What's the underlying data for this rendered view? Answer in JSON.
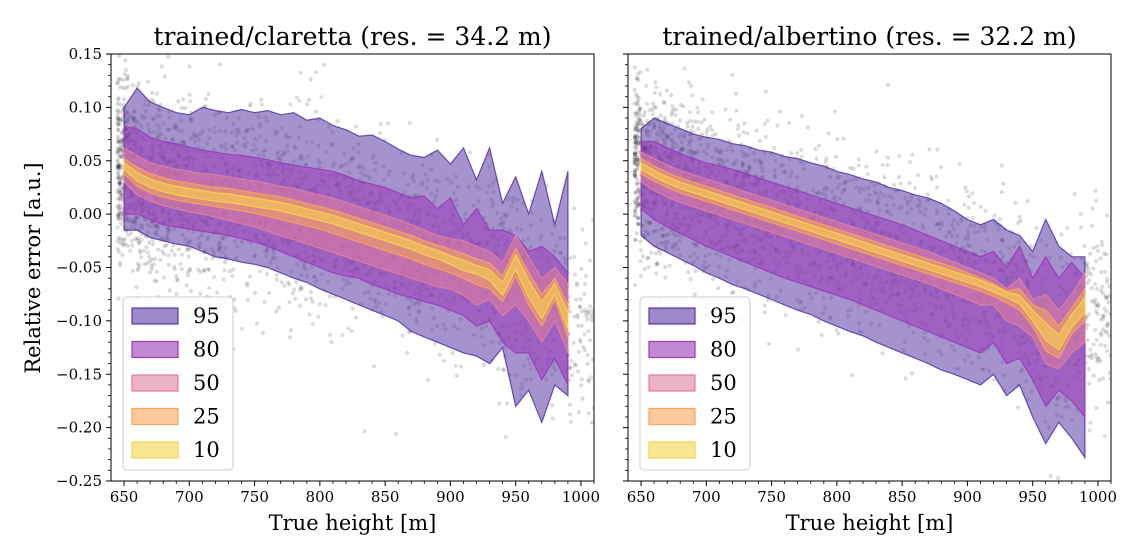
{
  "figure": {
    "ylabel": "Relative error [a.u.]",
    "xlabel": "True height [m]"
  },
  "chart_data": [
    {
      "type": "area",
      "title": "trained/claretta (res. = 34.2 m)",
      "xlabel": "True height [m]",
      "ylabel": "Relative error [a.u.]",
      "xlim": [
        640,
        1010
      ],
      "ylim": [
        -0.25,
        0.15
      ],
      "x_ticks": [
        650,
        700,
        750,
        800,
        850,
        900,
        950,
        1000
      ],
      "y_ticks": [
        -0.25,
        -0.2,
        -0.15,
        -0.1,
        -0.05,
        0.0,
        0.05,
        0.1,
        0.15
      ],
      "legend_position": "lower-left",
      "legend": [
        "95",
        "80",
        "50",
        "25",
        "10"
      ],
      "band_colors": [
        "#5b3aa6",
        "#9a3ab8",
        "#e07fa0",
        "#f7a55a",
        "#f7d44a"
      ],
      "scatter_color": "#000000",
      "scatter_points": 2400,
      "scatter_spread": 0.045,
      "x": [
        650,
        660,
        670,
        680,
        690,
        700,
        710,
        720,
        730,
        740,
        750,
        760,
        770,
        780,
        790,
        800,
        810,
        820,
        830,
        840,
        850,
        860,
        870,
        880,
        890,
        900,
        910,
        920,
        930,
        940,
        950,
        960,
        970,
        980,
        990
      ],
      "median": [
        0.045,
        0.035,
        0.029,
        0.025,
        0.022,
        0.02,
        0.018,
        0.016,
        0.015,
        0.013,
        0.011,
        0.009,
        0.007,
        0.004,
        0.001,
        -0.002,
        -0.005,
        -0.009,
        -0.013,
        -0.017,
        -0.021,
        -0.025,
        -0.029,
        -0.034,
        -0.038,
        -0.043,
        -0.048,
        -0.052,
        -0.057,
        -0.07,
        -0.045,
        -0.07,
        -0.09,
        -0.07,
        -0.1
      ],
      "bands": {
        "95": {
          "upper": [
            0.1,
            0.118,
            0.105,
            0.1,
            0.095,
            0.093,
            0.1,
            0.097,
            0.095,
            0.098,
            0.095,
            0.097,
            0.093,
            0.095,
            0.088,
            0.09,
            0.083,
            0.079,
            0.073,
            0.074,
            0.068,
            0.061,
            0.055,
            0.053,
            0.06,
            0.047,
            0.062,
            0.032,
            0.062,
            0.01,
            0.035,
            0.0,
            0.04,
            -0.01,
            0.04
          ],
          "lower": [
            -0.015,
            -0.015,
            -0.022,
            -0.025,
            -0.028,
            -0.03,
            -0.035,
            -0.04,
            -0.042,
            -0.045,
            -0.047,
            -0.05,
            -0.055,
            -0.06,
            -0.064,
            -0.07,
            -0.075,
            -0.08,
            -0.085,
            -0.09,
            -0.095,
            -0.1,
            -0.11,
            -0.115,
            -0.12,
            -0.125,
            -0.13,
            -0.133,
            -0.14,
            -0.125,
            -0.18,
            -0.165,
            -0.195,
            -0.16,
            -0.17
          ]
        },
        "80": {
          "upper": [
            0.082,
            0.08,
            0.072,
            0.068,
            0.066,
            0.063,
            0.06,
            0.058,
            0.056,
            0.055,
            0.053,
            0.051,
            0.048,
            0.046,
            0.044,
            0.042,
            0.04,
            0.036,
            0.031,
            0.028,
            0.025,
            0.02,
            0.015,
            0.017,
            0.005,
            0.015,
            -0.01,
            0.005,
            -0.015,
            -0.015,
            -0.02,
            -0.035,
            -0.03,
            -0.04,
            -0.055
          ],
          "lower": [
            0.0,
            0.0,
            -0.005,
            -0.01,
            -0.012,
            -0.014,
            -0.016,
            -0.018,
            -0.02,
            -0.023,
            -0.026,
            -0.03,
            -0.035,
            -0.04,
            -0.045,
            -0.05,
            -0.055,
            -0.058,
            -0.06,
            -0.066,
            -0.07,
            -0.075,
            -0.078,
            -0.082,
            -0.085,
            -0.09,
            -0.095,
            -0.105,
            -0.1,
            -0.12,
            -0.13,
            -0.13,
            -0.155,
            -0.135,
            -0.16
          ]
        },
        "50": {
          "upper": [
            0.062,
            0.055,
            0.048,
            0.045,
            0.042,
            0.04,
            0.038,
            0.037,
            0.035,
            0.033,
            0.031,
            0.029,
            0.026,
            0.024,
            0.021,
            0.018,
            0.015,
            0.011,
            0.007,
            0.003,
            -0.001,
            -0.005,
            -0.01,
            -0.015,
            -0.02,
            -0.023,
            -0.025,
            -0.03,
            -0.035,
            -0.045,
            -0.02,
            -0.04,
            -0.06,
            -0.05,
            -0.065
          ],
          "lower": [
            0.03,
            0.018,
            0.012,
            0.008,
            0.005,
            0.002,
            0.0,
            -0.003,
            -0.006,
            -0.009,
            -0.012,
            -0.016,
            -0.02,
            -0.024,
            -0.028,
            -0.032,
            -0.036,
            -0.04,
            -0.044,
            -0.048,
            -0.052,
            -0.056,
            -0.06,
            -0.064,
            -0.068,
            -0.07,
            -0.076,
            -0.085,
            -0.08,
            -0.095,
            -0.085,
            -0.1,
            -0.12,
            -0.1,
            -0.13
          ]
        },
        "25": {
          "upper": [
            0.052,
            0.044,
            0.038,
            0.034,
            0.031,
            0.029,
            0.027,
            0.025,
            0.024,
            0.022,
            0.02,
            0.018,
            0.016,
            0.013,
            0.01,
            0.007,
            0.004,
            0.0,
            -0.004,
            -0.008,
            -0.012,
            -0.016,
            -0.02,
            -0.025,
            -0.029,
            -0.033,
            -0.037,
            -0.042,
            -0.046,
            -0.058,
            -0.032,
            -0.055,
            -0.075,
            -0.06,
            -0.085
          ],
          "lower": [
            0.038,
            0.026,
            0.02,
            0.016,
            0.013,
            0.011,
            0.009,
            0.007,
            0.005,
            0.003,
            0.001,
            -0.002,
            -0.005,
            -0.008,
            -0.011,
            -0.014,
            -0.018,
            -0.022,
            -0.026,
            -0.03,
            -0.034,
            -0.038,
            -0.042,
            -0.047,
            -0.051,
            -0.055,
            -0.06,
            -0.066,
            -0.07,
            -0.082,
            -0.058,
            -0.085,
            -0.105,
            -0.08,
            -0.115
          ]
        },
        "10": {
          "upper": [
            0.048,
            0.039,
            0.033,
            0.029,
            0.026,
            0.024,
            0.022,
            0.02,
            0.019,
            0.017,
            0.015,
            0.013,
            0.011,
            0.008,
            0.005,
            0.002,
            -0.001,
            -0.005,
            -0.009,
            -0.013,
            -0.017,
            -0.021,
            -0.025,
            -0.03,
            -0.034,
            -0.039,
            -0.043,
            -0.048,
            -0.052,
            -0.064,
            -0.038,
            -0.062,
            -0.082,
            -0.065,
            -0.092
          ],
          "lower": [
            0.042,
            0.031,
            0.025,
            0.021,
            0.018,
            0.016,
            0.014,
            0.012,
            0.011,
            0.009,
            0.007,
            0.005,
            0.003,
            0.0,
            -0.003,
            -0.006,
            -0.009,
            -0.013,
            -0.017,
            -0.021,
            -0.025,
            -0.029,
            -0.033,
            -0.038,
            -0.042,
            -0.047,
            -0.053,
            -0.056,
            -0.062,
            -0.076,
            -0.052,
            -0.078,
            -0.098,
            -0.075,
            -0.108
          ]
        }
      }
    },
    {
      "type": "area",
      "title": "trained/albertino (res. = 32.2 m)",
      "xlabel": "True height [m]",
      "xlim": [
        640,
        1010
      ],
      "ylim": [
        -0.25,
        0.15
      ],
      "x_ticks": [
        650,
        700,
        750,
        800,
        850,
        900,
        950,
        1000
      ],
      "y_ticks": [
        -0.25,
        -0.2,
        -0.15,
        -0.1,
        -0.05,
        0.0,
        0.05,
        0.1,
        0.15
      ],
      "legend_position": "lower-left",
      "legend": [
        "95",
        "80",
        "50",
        "25",
        "10"
      ],
      "band_colors": [
        "#5b3aa6",
        "#9a3ab8",
        "#e07fa0",
        "#f7a55a",
        "#f7d44a"
      ],
      "scatter_color": "#000000",
      "scatter_points": 2400,
      "scatter_spread": 0.042,
      "x": [
        650,
        660,
        670,
        680,
        690,
        700,
        710,
        720,
        730,
        740,
        750,
        760,
        770,
        780,
        790,
        800,
        810,
        820,
        830,
        840,
        850,
        860,
        870,
        880,
        890,
        900,
        910,
        920,
        930,
        940,
        950,
        960,
        970,
        980,
        990
      ],
      "median": [
        0.045,
        0.038,
        0.032,
        0.027,
        0.023,
        0.019,
        0.015,
        0.011,
        0.007,
        0.003,
        -0.001,
        -0.005,
        -0.009,
        -0.013,
        -0.017,
        -0.021,
        -0.025,
        -0.029,
        -0.033,
        -0.037,
        -0.041,
        -0.045,
        -0.049,
        -0.053,
        -0.057,
        -0.061,
        -0.065,
        -0.07,
        -0.075,
        -0.08,
        -0.095,
        -0.11,
        -0.12,
        -0.1,
        -0.085
      ],
      "bands": {
        "95": {
          "upper": [
            0.08,
            0.09,
            0.085,
            0.08,
            0.075,
            0.072,
            0.07,
            0.066,
            0.064,
            0.06,
            0.058,
            0.054,
            0.052,
            0.048,
            0.045,
            0.04,
            0.037,
            0.033,
            0.03,
            0.025,
            0.022,
            0.018,
            0.015,
            0.01,
            0.003,
            -0.005,
            -0.01,
            -0.005,
            -0.015,
            -0.02,
            -0.035,
            -0.005,
            -0.03,
            -0.04,
            -0.04
          ],
          "lower": [
            -0.02,
            -0.03,
            -0.036,
            -0.042,
            -0.048,
            -0.055,
            -0.06,
            -0.066,
            -0.07,
            -0.075,
            -0.08,
            -0.085,
            -0.09,
            -0.094,
            -0.1,
            -0.105,
            -0.11,
            -0.114,
            -0.12,
            -0.125,
            -0.13,
            -0.135,
            -0.14,
            -0.146,
            -0.15,
            -0.155,
            -0.16,
            -0.15,
            -0.17,
            -0.16,
            -0.19,
            -0.215,
            -0.195,
            -0.21,
            -0.228
          ]
        },
        "80": {
          "upper": [
            0.068,
            0.068,
            0.062,
            0.057,
            0.052,
            0.048,
            0.045,
            0.042,
            0.038,
            0.034,
            0.03,
            0.026,
            0.022,
            0.018,
            0.014,
            0.01,
            0.006,
            0.002,
            -0.002,
            -0.006,
            -0.01,
            -0.015,
            -0.02,
            -0.025,
            -0.03,
            -0.035,
            -0.04,
            -0.035,
            -0.05,
            -0.03,
            -0.06,
            -0.04,
            -0.06,
            -0.045,
            -0.06
          ],
          "lower": [
            0.005,
            -0.005,
            -0.012,
            -0.018,
            -0.024,
            -0.03,
            -0.035,
            -0.04,
            -0.045,
            -0.05,
            -0.055,
            -0.06,
            -0.064,
            -0.068,
            -0.072,
            -0.076,
            -0.08,
            -0.085,
            -0.09,
            -0.095,
            -0.1,
            -0.105,
            -0.11,
            -0.115,
            -0.12,
            -0.125,
            -0.13,
            -0.12,
            -0.14,
            -0.135,
            -0.155,
            -0.18,
            -0.165,
            -0.175,
            -0.19
          ]
        },
        "50": {
          "upper": [
            0.058,
            0.052,
            0.046,
            0.041,
            0.037,
            0.033,
            0.029,
            0.025,
            0.021,
            0.017,
            0.013,
            0.009,
            0.005,
            0.001,
            -0.003,
            -0.007,
            -0.011,
            -0.015,
            -0.019,
            -0.023,
            -0.027,
            -0.031,
            -0.035,
            -0.04,
            -0.045,
            -0.05,
            -0.055,
            -0.06,
            -0.07,
            -0.06,
            -0.08,
            -0.075,
            -0.09,
            -0.075,
            -0.055
          ],
          "lower": [
            0.03,
            0.022,
            0.016,
            0.011,
            0.007,
            0.003,
            -0.001,
            -0.005,
            -0.009,
            -0.013,
            -0.017,
            -0.021,
            -0.025,
            -0.029,
            -0.033,
            -0.037,
            -0.041,
            -0.045,
            -0.049,
            -0.053,
            -0.057,
            -0.061,
            -0.065,
            -0.07,
            -0.075,
            -0.08,
            -0.085,
            -0.085,
            -0.1,
            -0.105,
            -0.115,
            -0.14,
            -0.145,
            -0.13,
            -0.12
          ]
        },
        "25": {
          "upper": [
            0.052,
            0.045,
            0.039,
            0.034,
            0.03,
            0.026,
            0.022,
            0.018,
            0.014,
            0.01,
            0.006,
            0.002,
            -0.002,
            -0.006,
            -0.01,
            -0.014,
            -0.018,
            -0.022,
            -0.026,
            -0.03,
            -0.034,
            -0.038,
            -0.042,
            -0.046,
            -0.05,
            -0.055,
            -0.06,
            -0.065,
            -0.072,
            -0.07,
            -0.085,
            -0.09,
            -0.105,
            -0.088,
            -0.07
          ],
          "lower": [
            0.038,
            0.031,
            0.025,
            0.02,
            0.016,
            0.012,
            0.008,
            0.004,
            0.0,
            -0.004,
            -0.008,
            -0.012,
            -0.016,
            -0.02,
            -0.024,
            -0.028,
            -0.032,
            -0.036,
            -0.04,
            -0.044,
            -0.048,
            -0.052,
            -0.056,
            -0.06,
            -0.064,
            -0.068,
            -0.072,
            -0.077,
            -0.083,
            -0.09,
            -0.105,
            -0.128,
            -0.135,
            -0.112,
            -0.1
          ]
        },
        "10": {
          "upper": [
            0.048,
            0.041,
            0.035,
            0.03,
            0.026,
            0.022,
            0.018,
            0.014,
            0.01,
            0.006,
            0.002,
            -0.002,
            -0.006,
            -0.01,
            -0.014,
            -0.018,
            -0.022,
            -0.026,
            -0.03,
            -0.034,
            -0.038,
            -0.042,
            -0.046,
            -0.05,
            -0.054,
            -0.058,
            -0.062,
            -0.067,
            -0.073,
            -0.076,
            -0.09,
            -0.102,
            -0.113,
            -0.094,
            -0.078
          ],
          "lower": [
            0.042,
            0.035,
            0.029,
            0.024,
            0.02,
            0.016,
            0.012,
            0.008,
            0.004,
            0.0,
            -0.004,
            -0.008,
            -0.012,
            -0.016,
            -0.02,
            -0.024,
            -0.028,
            -0.032,
            -0.036,
            -0.04,
            -0.044,
            -0.048,
            -0.052,
            -0.056,
            -0.06,
            -0.064,
            -0.068,
            -0.073,
            -0.078,
            -0.084,
            -0.1,
            -0.118,
            -0.127,
            -0.106,
            -0.092
          ]
        }
      }
    }
  ]
}
